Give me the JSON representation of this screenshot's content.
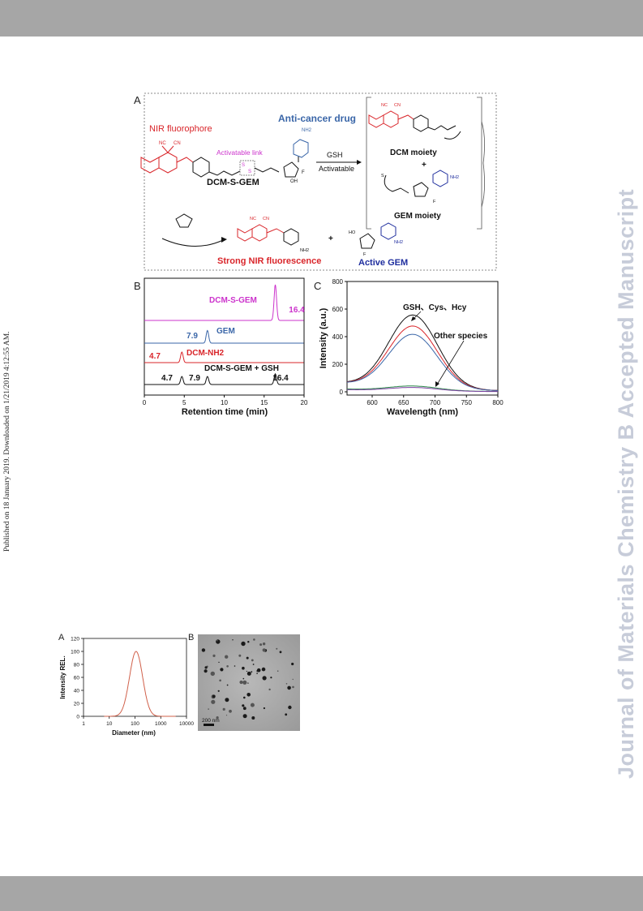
{
  "sidebar": {
    "published": "Published on 18 January 2019. Downloaded on 1/21/2019 4:12:55 AM.",
    "journal": "Journal of Materials Chemistry B Accepted Manuscript"
  },
  "scheme": {
    "panel": "A",
    "nir": "NIR fluorophore",
    "drug": "Anti-cancer drug",
    "link": "Activatable link",
    "compound": "DCM-S-GEM",
    "gsh": "GSH",
    "activatable": "Activatable",
    "dcm_moiety": "DCM moiety",
    "gem_moiety": "GEM moiety",
    "plus": "+",
    "strong": "Strong NIR fluorescence",
    "active": "Active GEM",
    "atoms": {
      "nc": "NC",
      "cn": "CN",
      "nh2": "NH2",
      "o": "O",
      "n": "N",
      "h": "H",
      "s": "S",
      "f": "F",
      "ho": "HO",
      "oh": "OH"
    }
  },
  "colors": {
    "red": "#d9252a",
    "pink": "#cc33cc",
    "blue": "#3a66a8",
    "navy": "#1f2e9e",
    "black": "#111111"
  },
  "chart_data": [
    {
      "panel": "B",
      "type": "line",
      "xlabel": "Retention time (min)",
      "xlim": [
        0,
        20
      ],
      "xticks": [
        0,
        5,
        10,
        15,
        20
      ],
      "series": [
        {
          "name": "DCM-S-GEM",
          "color": "#cc33cc",
          "peaks": [
            {
              "x": 16.4,
              "h": 1.0
            }
          ],
          "labels": [
            "16.4"
          ]
        },
        {
          "name": "GEM",
          "color": "#3a66a8",
          "peaks": [
            {
              "x": 7.9,
              "h": 0.6
            }
          ],
          "labels": [
            "7.9"
          ]
        },
        {
          "name": "DCM-NH2",
          "color": "#d9252a",
          "peaks": [
            {
              "x": 4.7,
              "h": 0.5
            }
          ],
          "labels": [
            "4.7"
          ]
        },
        {
          "name": "DCM-S-GEM + GSH",
          "color": "#111111",
          "peaks": [
            {
              "x": 4.7,
              "h": 0.45
            },
            {
              "x": 7.9,
              "h": 0.45
            },
            {
              "x": 16.4,
              "h": 0.6
            }
          ],
          "labels": [
            "4.7",
            "7.9",
            "16.4"
          ]
        }
      ]
    },
    {
      "panel": "C",
      "type": "line",
      "xlabel": "Wavelength (nm)",
      "ylabel": "Intensity (a.u.)",
      "xlim": [
        560,
        800
      ],
      "ylim": [
        0,
        800
      ],
      "xticks": [
        600,
        650,
        700,
        750,
        800
      ],
      "yticks": [
        0,
        200,
        400,
        600,
        800
      ],
      "annotations": [
        "GSH、Cys、Hcy",
        "Other species"
      ],
      "series": [
        {
          "color": "#111111",
          "peak": 550,
          "center": 665,
          "base": 60
        },
        {
          "color": "#d9252a",
          "peak": 470,
          "center": 665,
          "base": 60
        },
        {
          "color": "#3a66a8",
          "peak": 410,
          "center": 665,
          "base": 60
        },
        {
          "color": "#2c8a4a",
          "peak": 40,
          "center": 665,
          "base": 20
        },
        {
          "color": "#7a3fa0",
          "peak": 30,
          "center": 665,
          "base": 15
        }
      ]
    },
    {
      "panel": "A",
      "type": "line",
      "xlabel": "Diameter (nm)",
      "ylabel": "Intensity REL.",
      "xscale": "log",
      "xlim": [
        1,
        10000
      ],
      "ylim": [
        0,
        120
      ],
      "xticks": [
        1,
        10,
        100,
        1000,
        10000
      ],
      "yticks": [
        0,
        20,
        40,
        60,
        80,
        100,
        120
      ],
      "series": [
        {
          "color": "#d0604a",
          "center": 110,
          "peak": 100
        }
      ]
    }
  ],
  "tem": {
    "panel": "B",
    "scale": "200 nm"
  }
}
